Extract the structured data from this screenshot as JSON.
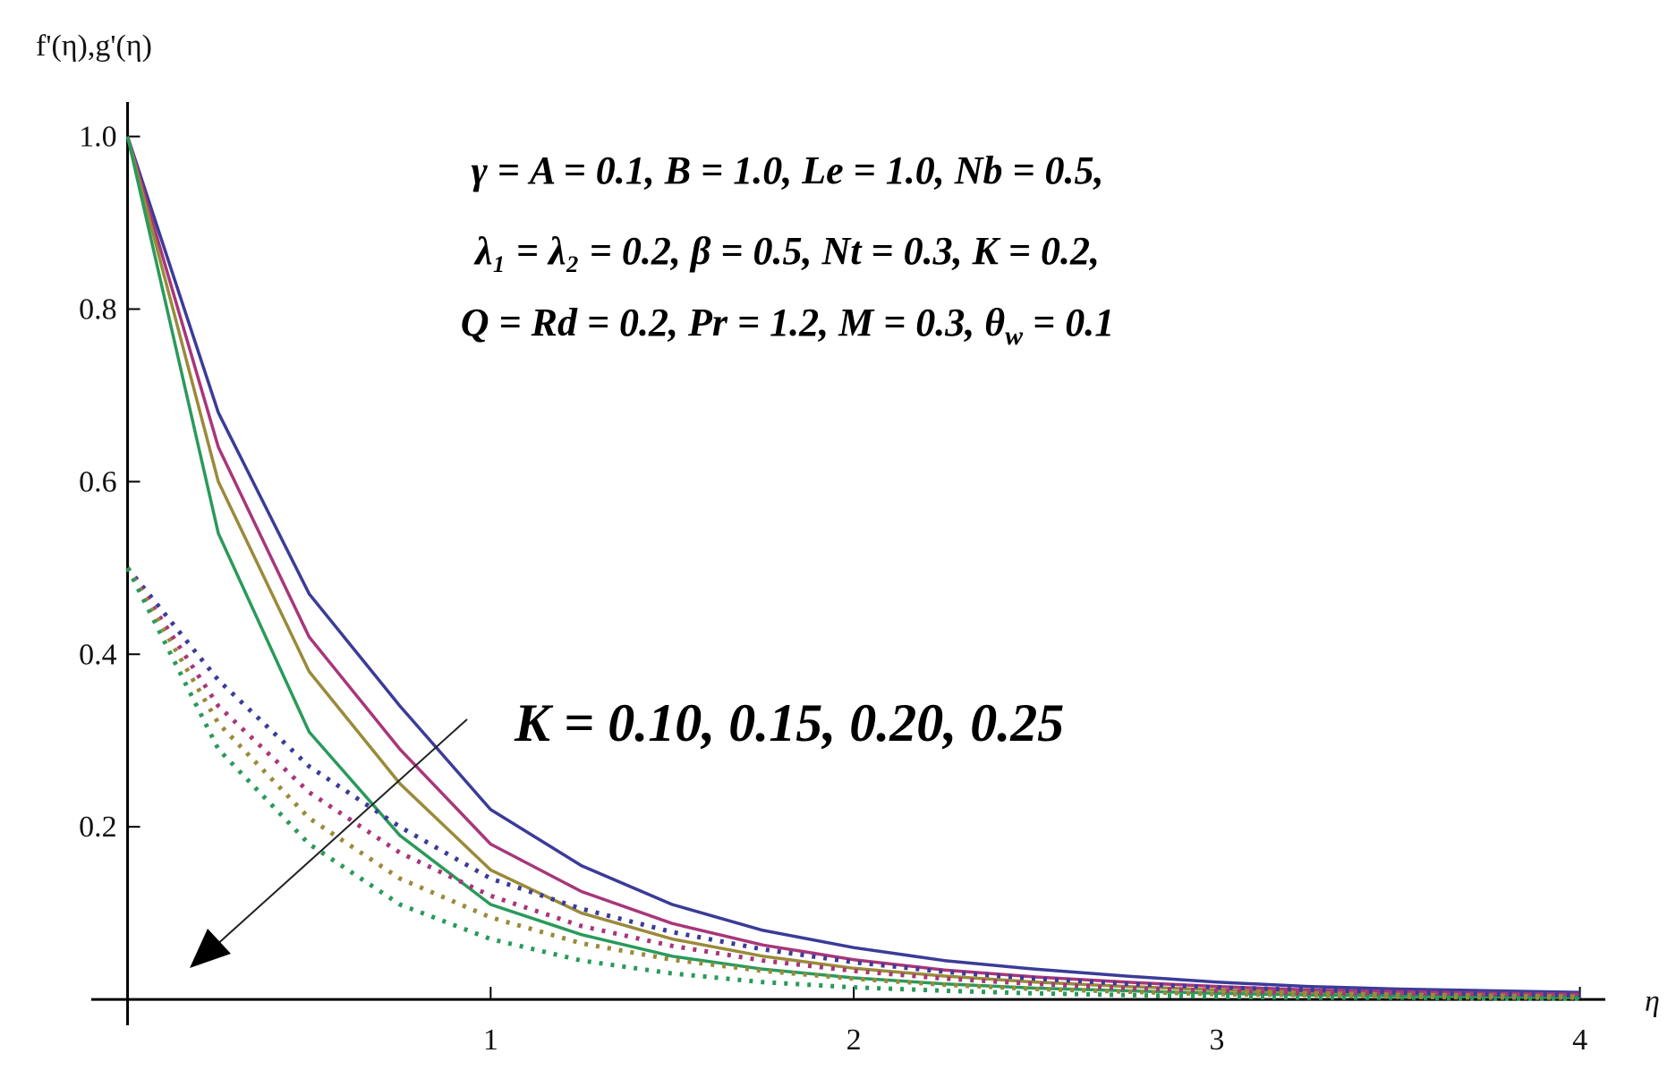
{
  "chart_data": {
    "type": "line",
    "y_label": "f'(η),g'(η)",
    "x_label": "η",
    "x": [
      0,
      0.25,
      0.5,
      0.75,
      1,
      1.25,
      1.5,
      1.75,
      2,
      2.25,
      2.5,
      2.75,
      3,
      3.25,
      3.5,
      3.75,
      4
    ],
    "series": [
      {
        "color": "#3b3b98",
        "style": "solid",
        "values": [
          1,
          0.68,
          0.47,
          0.34,
          0.22,
          0.155,
          0.11,
          0.08,
          0.06,
          0.045,
          0.035,
          0.027,
          0.02,
          0.015,
          0.012,
          0.01,
          0.008
        ]
      },
      {
        "color": "#a8367a",
        "style": "solid",
        "values": [
          1,
          0.64,
          0.42,
          0.29,
          0.18,
          0.125,
          0.088,
          0.063,
          0.046,
          0.034,
          0.026,
          0.02,
          0.015,
          0.011,
          0.009,
          0.007,
          0.006
        ]
      },
      {
        "color": "#9a8a3a",
        "style": "solid",
        "values": [
          1,
          0.6,
          0.38,
          0.25,
          0.15,
          0.1,
          0.07,
          0.05,
          0.036,
          0.027,
          0.02,
          0.015,
          0.011,
          0.008,
          0.006,
          0.005,
          0.004
        ]
      },
      {
        "color": "#2a9a5a",
        "style": "solid",
        "values": [
          1,
          0.54,
          0.31,
          0.19,
          0.11,
          0.075,
          0.05,
          0.035,
          0.025,
          0.018,
          0.013,
          0.01,
          0.007,
          0.005,
          0.004,
          0.003,
          0.002
        ]
      },
      {
        "color": "#3b3b98",
        "style": "dotted",
        "values": [
          0.5,
          0.37,
          0.27,
          0.2,
          0.14,
          0.105,
          0.078,
          0.058,
          0.043,
          0.032,
          0.024,
          0.018,
          0.014,
          0.011,
          0.008,
          0.006,
          0.005
        ]
      },
      {
        "color": "#a8367a",
        "style": "dotted",
        "values": [
          0.5,
          0.34,
          0.24,
          0.17,
          0.12,
          0.085,
          0.062,
          0.045,
          0.033,
          0.024,
          0.018,
          0.013,
          0.01,
          0.007,
          0.005,
          0.004,
          0.003
        ]
      },
      {
        "color": "#9a8a3a",
        "style": "dotted",
        "values": [
          0.5,
          0.32,
          0.21,
          0.14,
          0.095,
          0.065,
          0.046,
          0.033,
          0.024,
          0.017,
          0.012,
          0.009,
          0.006,
          0.005,
          0.003,
          0.002,
          0.002
        ]
      },
      {
        "color": "#2a9a5a",
        "style": "dotted",
        "values": [
          0.5,
          0.29,
          0.18,
          0.11,
          0.07,
          0.045,
          0.03,
          0.02,
          0.014,
          0.01,
          0.007,
          0.005,
          0.003,
          0.002,
          0.002,
          0.001,
          0.001
        ]
      }
    ],
    "xlim": [
      -0.1,
      4.07
    ],
    "ylim": [
      -0.03,
      1.04
    ],
    "xticks": [
      1,
      2,
      3,
      4
    ],
    "yticks": [
      0.2,
      0.4,
      0.6,
      0.8,
      {
        "value": 1,
        "label": "1.0"
      }
    ],
    "annotations": {
      "params": [
        "γ = A = 0.1, B = 1.0, Le = 1.0, Nb = 0.5,",
        "λ₁ = λ₂ = 0.2, β = 0.5, Nt = 0.3, K = 0.2,",
        [
          "Q = Rd = 0.2, Pr = 1.2, M = 0.3, θ",
          "w",
          " = 0.1"
        ]
      ],
      "k_label": "K = 0.10, 0.15, 0.20, 0.25"
    }
  }
}
